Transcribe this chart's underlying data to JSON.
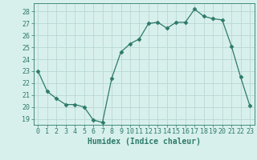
{
  "x": [
    0,
    1,
    2,
    3,
    4,
    5,
    6,
    7,
    8,
    9,
    10,
    11,
    12,
    13,
    14,
    15,
    16,
    17,
    18,
    19,
    20,
    21,
    22,
    23
  ],
  "y": [
    23,
    21.3,
    20.7,
    20.2,
    20.2,
    20.0,
    18.9,
    18.7,
    22.4,
    24.6,
    25.3,
    25.7,
    27.0,
    27.1,
    26.6,
    27.1,
    27.1,
    28.2,
    27.6,
    27.4,
    27.3,
    25.1,
    22.5,
    20.1
  ],
  "xlim": [
    -0.5,
    23.5
  ],
  "ylim": [
    18.5,
    28.7
  ],
  "yticks": [
    19,
    20,
    21,
    22,
    23,
    24,
    25,
    26,
    27,
    28
  ],
  "xticks": [
    0,
    1,
    2,
    3,
    4,
    5,
    6,
    7,
    8,
    9,
    10,
    11,
    12,
    13,
    14,
    15,
    16,
    17,
    18,
    19,
    20,
    21,
    22,
    23
  ],
  "xlabel": "Humidex (Indice chaleur)",
  "line_color": "#2d7a6a",
  "marker": "D",
  "marker_size": 2.5,
  "bg_color": "#d8f0ec",
  "plot_bg_color": "#d8f0ec",
  "grid_color": "#b8d8d4",
  "tick_color": "#2d7a6a",
  "label_color": "#2d7a6a",
  "xlabel_fontsize": 7,
  "tick_fontsize": 6
}
